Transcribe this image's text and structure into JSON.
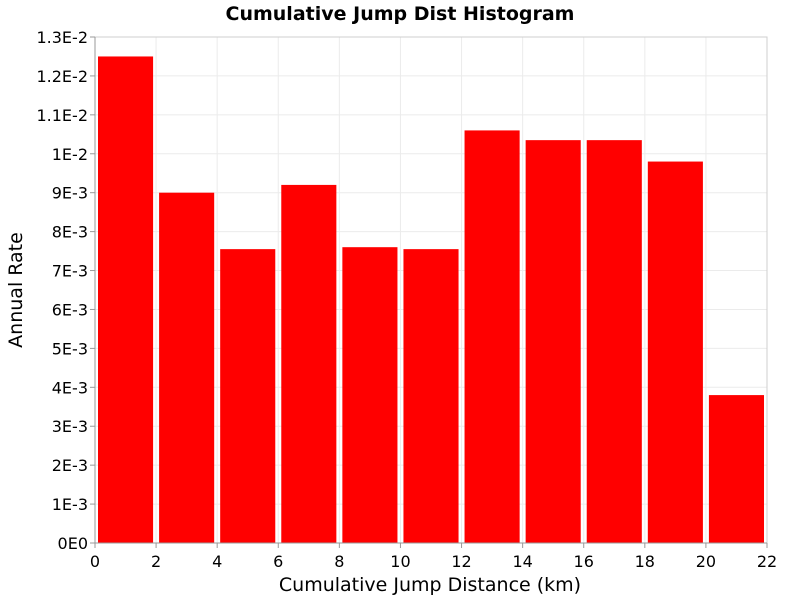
{
  "chart_data": {
    "type": "bar",
    "title": "Cumulative Jump Dist Histogram",
    "xlabel": "Cumulative Jump Distance (km)",
    "ylabel": "Annual Rate",
    "xlim": [
      0,
      22
    ],
    "ylim": [
      0,
      0.013
    ],
    "x_ticks": [
      "0",
      "2",
      "4",
      "6",
      "8",
      "10",
      "12",
      "14",
      "16",
      "18",
      "20",
      "22"
    ],
    "y_ticks": [
      "0E0",
      "1E-3",
      "2E-3",
      "3E-3",
      "4E-3",
      "5E-3",
      "6E-3",
      "7E-3",
      "8E-3",
      "9E-3",
      "1E-2",
      "1.1E-2",
      "1.2E-2",
      "1.3E-2"
    ],
    "bins": [
      {
        "x_start": 0,
        "x_end": 2,
        "value": 0.0125
      },
      {
        "x_start": 2,
        "x_end": 4,
        "value": 0.009
      },
      {
        "x_start": 4,
        "x_end": 6,
        "value": 0.00755
      },
      {
        "x_start": 6,
        "x_end": 8,
        "value": 0.0092
      },
      {
        "x_start": 8,
        "x_end": 10,
        "value": 0.0076
      },
      {
        "x_start": 10,
        "x_end": 12,
        "value": 0.00755
      },
      {
        "x_start": 12,
        "x_end": 14,
        "value": 0.0106
      },
      {
        "x_start": 14,
        "x_end": 16,
        "value": 0.01035
      },
      {
        "x_start": 16,
        "x_end": 18,
        "value": 0.01035
      },
      {
        "x_start": 18,
        "x_end": 20,
        "value": 0.0098
      },
      {
        "x_start": 20,
        "x_end": 22,
        "value": 0.0038
      }
    ],
    "grid": true,
    "legend": "none",
    "colors": {
      "bar": "#ff0000",
      "background": "#ffffff",
      "grid": "#ebebeb",
      "axis": "#999999"
    }
  }
}
